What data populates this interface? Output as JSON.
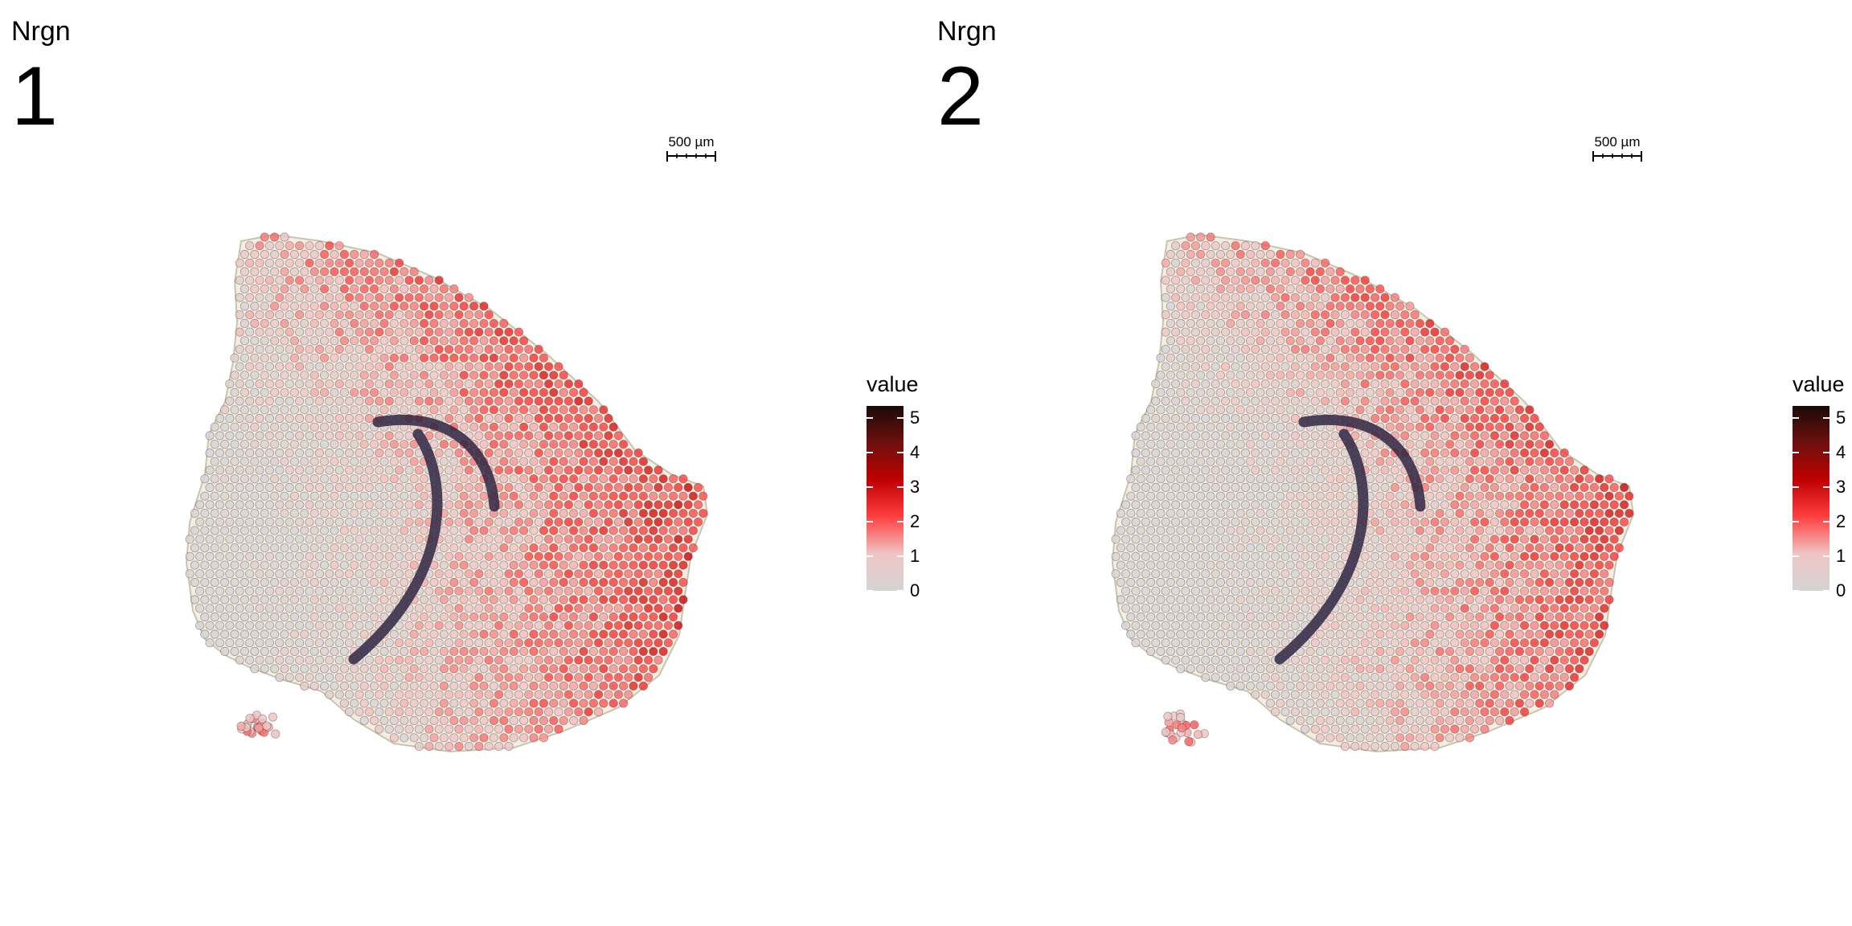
{
  "panels": [
    {
      "gene": "Nrgn",
      "sample": "1",
      "scalebar": "500 µm"
    },
    {
      "gene": "Nrgn",
      "sample": "2",
      "scalebar": "500 µm"
    }
  ],
  "legend": {
    "title": "value",
    "ticks": [
      "0",
      "1",
      "2",
      "3",
      "4",
      "5"
    ],
    "colors": [
      "#d4d4d4",
      "#f0c4c4",
      "#ff4040",
      "#c00000",
      "#6e1010",
      "#1a0a05"
    ]
  },
  "tissue": {
    "base_color": "#f2efe2",
    "hippocampus_color": "#2a2140"
  }
}
